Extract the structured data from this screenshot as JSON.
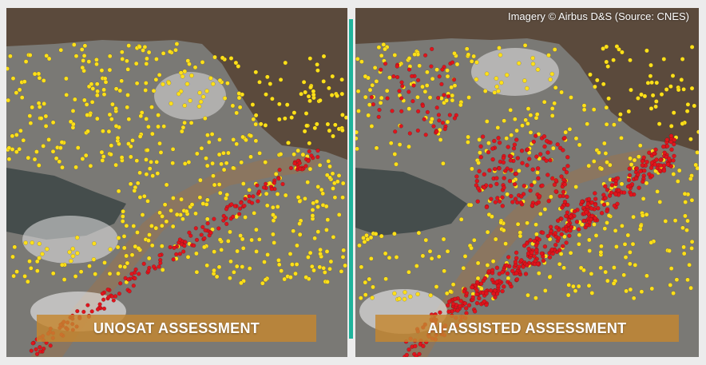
{
  "credit": "Imagery © Airbus D&S (Source: CNES)",
  "panels": {
    "left": {
      "caption": "UNOSAT ASSESSMENT"
    },
    "right": {
      "caption": "AI-ASSISTED ASSESSMENT"
    }
  },
  "colors": {
    "sea": "#5b4a3c",
    "land": "#7d7c78",
    "riverbed": "#8b7660",
    "moderate_damage": "#ffe01a",
    "severe_damage": "#e0141c",
    "divider": "#1fb39b",
    "caption_bg": "#c48630"
  }
}
